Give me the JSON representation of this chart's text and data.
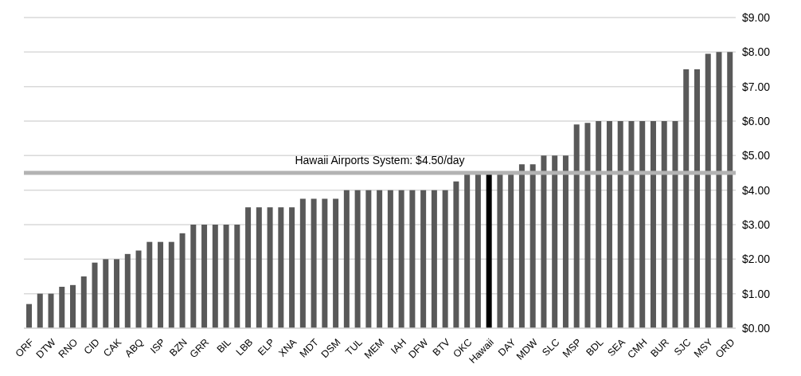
{
  "chart_data": {
    "type": "bar",
    "categories": [
      "ORF",
      null,
      "DTW",
      null,
      "RNO",
      null,
      "CID",
      null,
      "CAK",
      null,
      "ABQ",
      null,
      "ISP",
      null,
      "BZN",
      null,
      "GRR",
      null,
      "BIL",
      null,
      "LBB",
      null,
      "ELP",
      null,
      "XNA",
      null,
      "MDT",
      null,
      "DSM",
      null,
      "TUL",
      null,
      "MEM",
      null,
      "IAH",
      null,
      "DFW",
      null,
      "BTV",
      null,
      "OKC",
      null,
      "Hawaii",
      null,
      "DAY",
      null,
      "MDW",
      null,
      "SLC",
      null,
      "MSP",
      null,
      "BDL",
      null,
      "SEA",
      null,
      "CMH",
      null,
      "BUR",
      null,
      "SJC",
      null,
      "MSY",
      null,
      "ORD"
    ],
    "values": [
      0.7,
      1.0,
      1.0,
      1.2,
      1.25,
      1.5,
      1.9,
      2.0,
      2.0,
      2.15,
      2.25,
      2.5,
      2.5,
      2.5,
      2.75,
      3.0,
      3.0,
      3.0,
      3.0,
      3.0,
      3.5,
      3.5,
      3.5,
      3.5,
      3.5,
      3.75,
      3.75,
      3.75,
      3.75,
      4.0,
      4.0,
      4.0,
      4.0,
      4.0,
      4.0,
      4.0,
      4.0,
      4.0,
      4.0,
      4.25,
      4.5,
      4.5,
      4.5,
      4.5,
      4.5,
      4.75,
      4.75,
      5.0,
      5.0,
      5.0,
      5.9,
      5.95,
      6.0,
      6.0,
      6.0,
      6.0,
      6.0,
      6.0,
      6.0,
      6.0,
      7.5,
      7.5,
      7.95,
      8.0,
      8.0
    ],
    "colors": [
      "#595959",
      "#595959",
      "#595959",
      "#595959",
      "#595959",
      "#595959",
      "#595959",
      "#595959",
      "#595959",
      "#595959",
      "#595959",
      "#595959",
      "#595959",
      "#595959",
      "#595959",
      "#595959",
      "#595959",
      "#595959",
      "#595959",
      "#595959",
      "#595959",
      "#595959",
      "#595959",
      "#595959",
      "#595959",
      "#595959",
      "#595959",
      "#595959",
      "#595959",
      "#595959",
      "#595959",
      "#595959",
      "#595959",
      "#595959",
      "#595959",
      "#595959",
      "#595959",
      "#595959",
      "#595959",
      "#595959",
      "#595959",
      "#595959",
      "#000000",
      "#595959",
      "#595959",
      "#595959",
      "#595959",
      "#595959",
      "#595959",
      "#595959",
      "#595959",
      "#595959",
      "#595959",
      "#595959",
      "#595959",
      "#595959",
      "#595959",
      "#595959",
      "#595959",
      "#595959",
      "#595959",
      "#595959",
      "#595959",
      "#595959",
      "#595959"
    ],
    "ylim": [
      0,
      9
    ],
    "yticks": [
      {
        "value": 0,
        "label": "$0.00"
      },
      {
        "value": 1,
        "label": "$1.00"
      },
      {
        "value": 2,
        "label": "$2.00"
      },
      {
        "value": 3,
        "label": "$3.00"
      },
      {
        "value": 4,
        "label": "$4.00"
      },
      {
        "value": 5,
        "label": "$5.00"
      },
      {
        "value": 6,
        "label": "$6.00"
      },
      {
        "value": 7,
        "label": "$7.00"
      },
      {
        "value": 8,
        "label": "$8.00"
      },
      {
        "value": 9,
        "label": "$9.00"
      }
    ],
    "grid": "y",
    "legend": false,
    "ref_lines": [
      {
        "axis": "y",
        "value": 4.5,
        "label": "Hawaii Airports System: $4.50/day",
        "color": "#b3b3b3"
      }
    ]
  }
}
